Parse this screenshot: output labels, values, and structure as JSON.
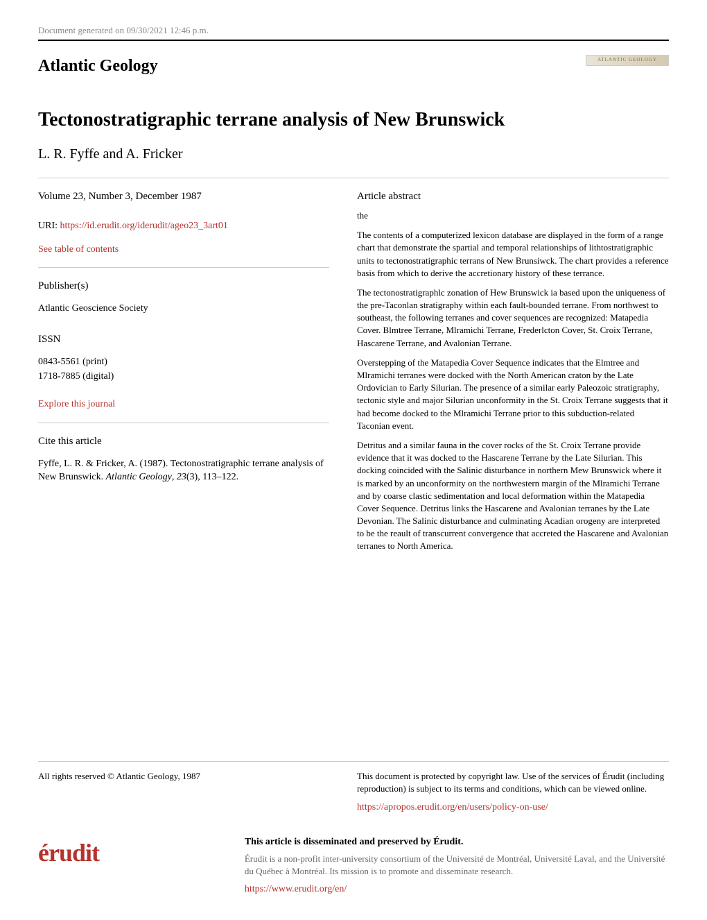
{
  "header": {
    "generated_date": "Document generated on 09/30/2021 12:46 p.m.",
    "journal_name": "Atlantic Geology",
    "logo_text": "ATLANTIC GEOLOGY"
  },
  "article": {
    "title": "Tectonostratigraphic terrane analysis of New Brunswick",
    "authors": "L. R. Fyffe and A. Fricker"
  },
  "metadata": {
    "volume": "Volume 23, Number 3, December 1987",
    "uri_label": "URI: ",
    "uri_link": "https://id.erudit.org/iderudit/ageo23_3art01",
    "toc_link": "See table of contents",
    "publisher_heading": "Publisher(s)",
    "publisher": "Atlantic Geoscience Society",
    "issn_heading": "ISSN",
    "issn_print": "0843-5561 (print)",
    "issn_digital": "1718-7885 (digital)",
    "explore_link": "Explore this journal",
    "cite_heading": "Cite this article",
    "citation_text": "Fyffe, L. R. & Fricker, A. (1987). Tectonostratigraphic terrane analysis of New Brunswick. ",
    "citation_journal": "Atlantic Geology",
    "citation_vol": ", ",
    "citation_vol_num": "23",
    "citation_issue": "(3), 113–122."
  },
  "abstract": {
    "heading": "Article abstract",
    "para1": "the",
    "para2": "The contents of a computerized lexicon database are displayed in the form of a range chart that demonstrate the spartial and temporal relationships of lithtostratigraphic units to tectonostratigraphic terrans of New Brunsiwck. The chart provides a reference basis from which to derive the accretionary history of these terrance.",
    "para3": "The tectonostratigraphlc zonation of Hew Brunswick ia based upon the uniqueness of the pre-Taconlan stratigraphy within each fault-bounded terrane. From northwest to southeast, the following terranes and cover sequences are recognized: Matapedia Cover. Blmtree Terrane, Mlramichi Terrane, Frederlcton Cover, St. Croix Terrane, Hascarene Terrane, and Avalonian Terrane.",
    "para4": "Overstepping of the Matapedia Cover Sequence indicates that the Elmtree and Mlramichi terranes were docked with the North American craton by the Late Ordovician to Early Silurian. The presence of a similar early Paleozoic stratigraphy, tectonic style and major Silurian unconformity in the St. Croix Terrane suggests that it had become docked to the Mlramichi Terrane prior to this subduction-related Taconian event.",
    "para5": "Detritus and a similar fauna in the cover rocks of the St. Croix Terrane provide evidence that it was docked to the Hascarene Terrane by the Late Silurian. This docking coincided with the Salinic disturbance in northern Mew Brunswick where it is marked by an unconformity on the northwestern margin of the Mlramichi Terrane and by coarse clastic sedimentation and local deformation within the Matapedia Cover Sequence. Detritus links the Hascarene and Avalonian terranes by the Late Devonian. The Salinic disturbance and culminating Acadian orogeny are interpreted to be the reault of transcurrent convergence that accreted the Hascarene and Avalonian terranes to North America."
  },
  "footer": {
    "copyright": "All rights reserved © Atlantic Geology, 1987",
    "protection_text": "This document is protected by copyright law. Use of the services of Érudit (including reproduction) is subject to its terms and conditions, which can be viewed online.",
    "policy_link": "https://apropos.erudit.org/en/users/policy-on-use/",
    "erudit_logo": "érudit",
    "dissemination_heading": "This article is disseminated and preserved by Érudit.",
    "dissemination_text": "Érudit is a non-profit inter-university consortium of the Université de Montréal, Université Laval, and the Université du Québec à Montréal. Its mission is to promote and disseminate research.",
    "erudit_link": "https://www.erudit.org/en/"
  }
}
